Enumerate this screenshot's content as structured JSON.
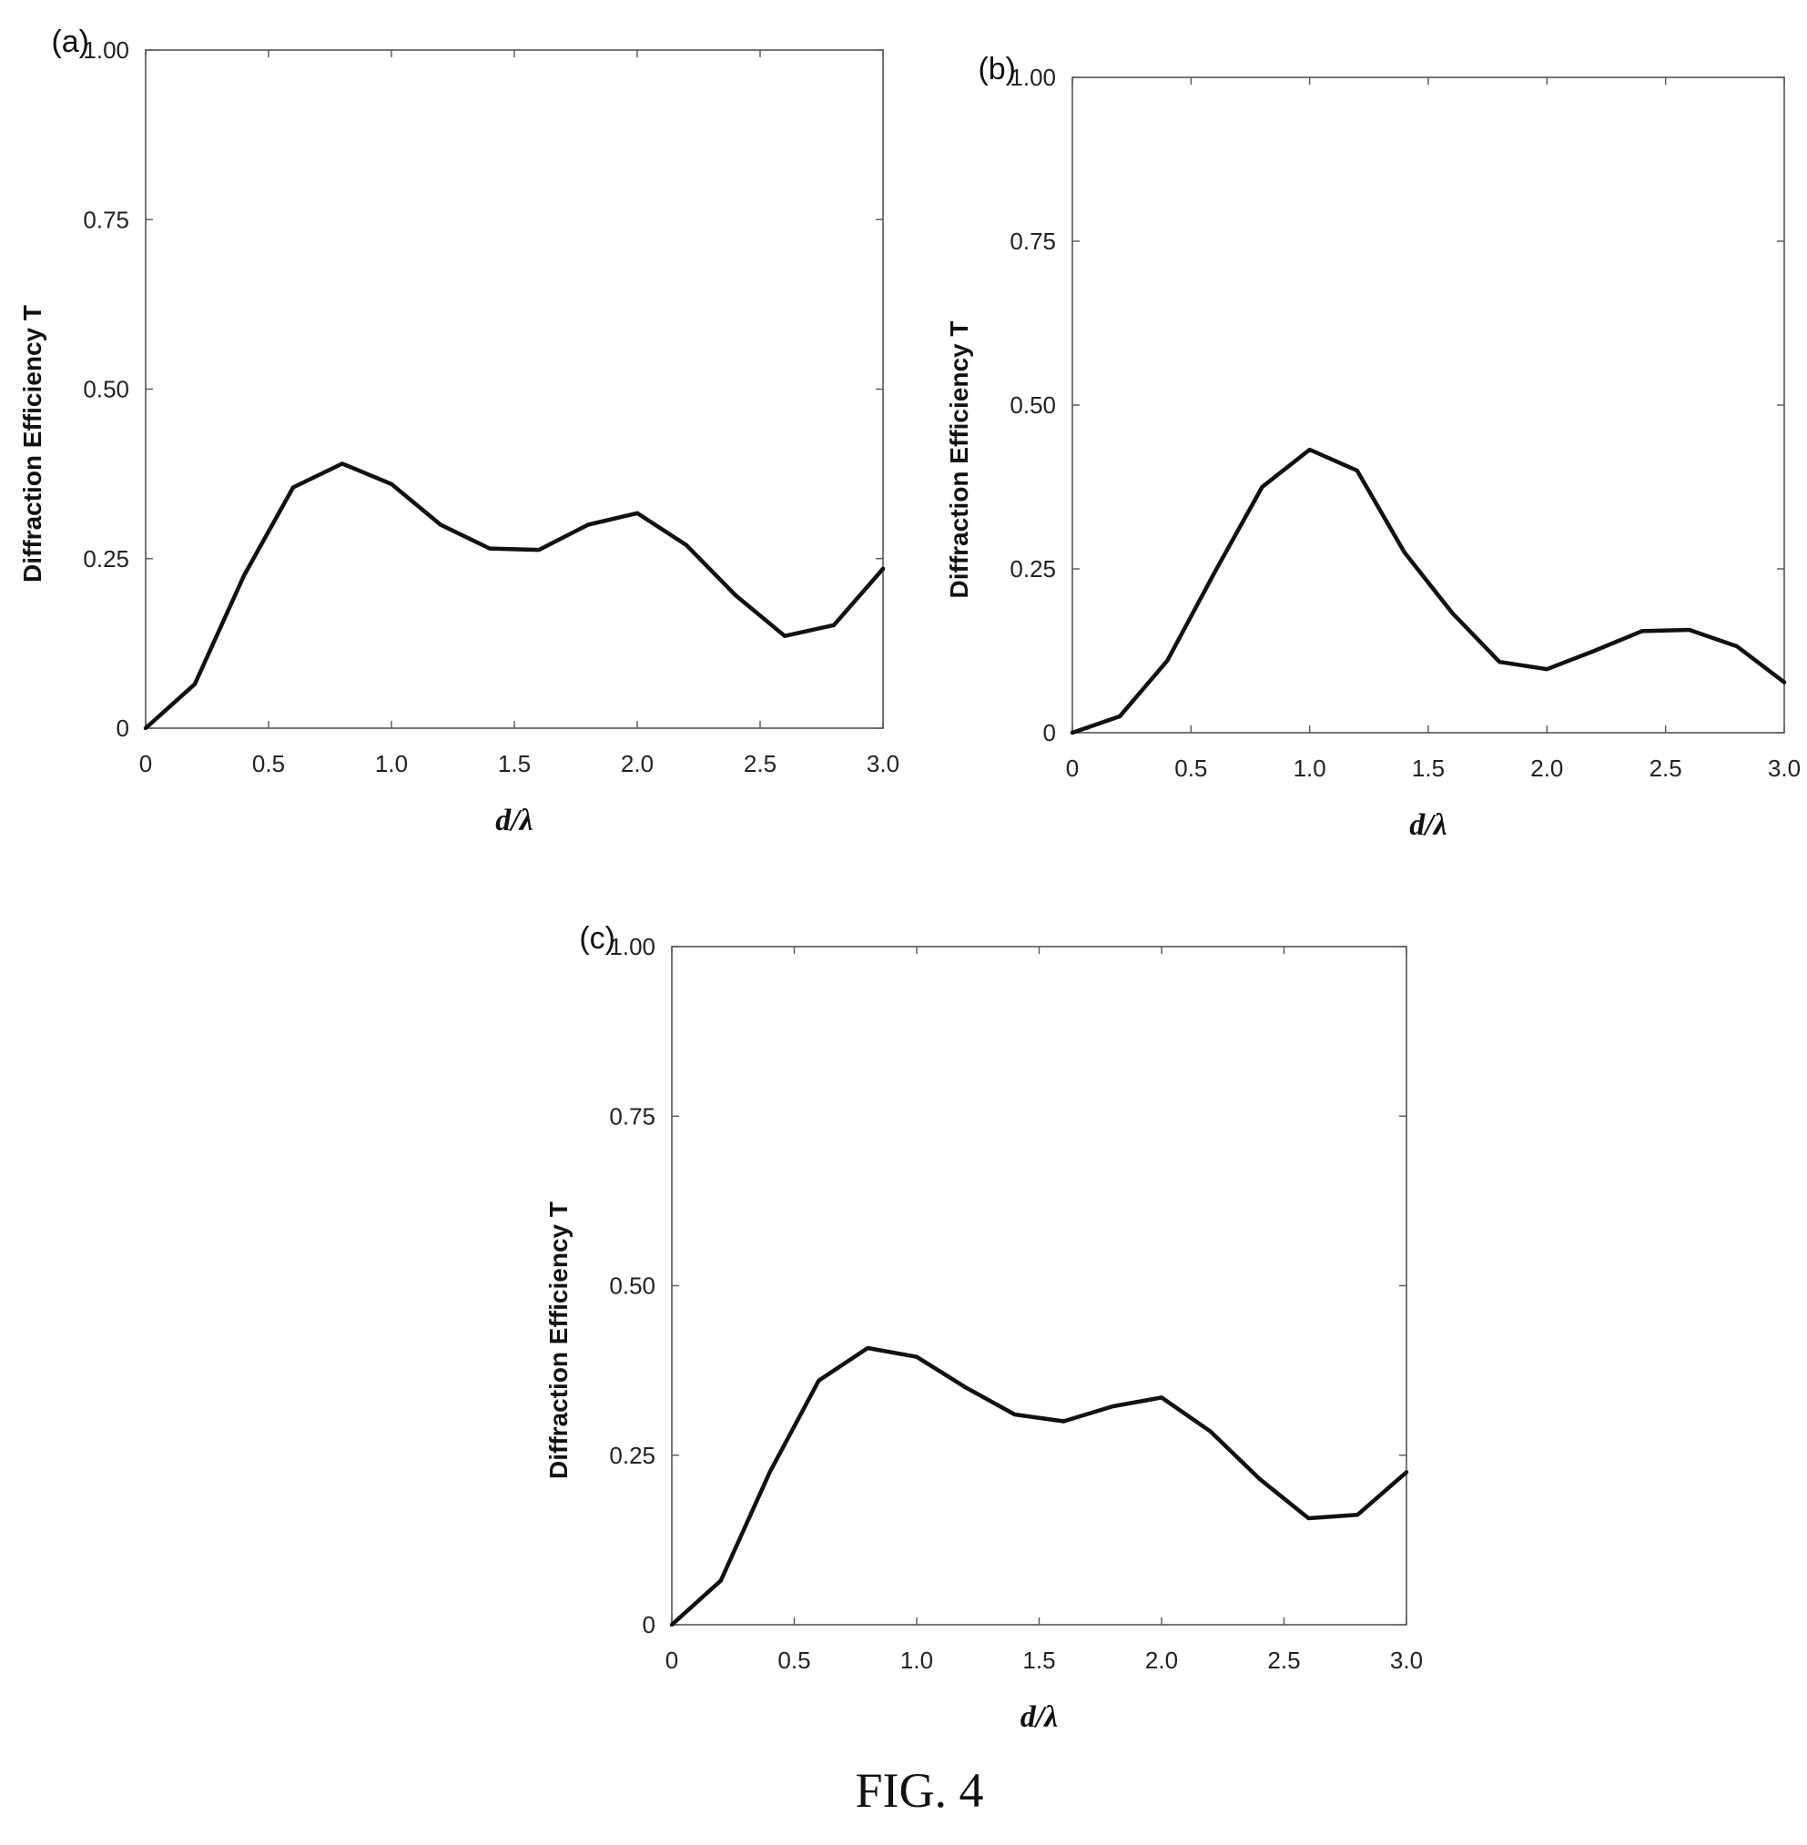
{
  "figure_caption": "FIG. 4",
  "chart_data": [
    {
      "panel_label": "(a)",
      "type": "line",
      "xlabel": "d/λ",
      "ylabel": "Diffraction Efficiency T",
      "xlim": [
        0,
        3.0
      ],
      "ylim": [
        0,
        1.0
      ],
      "xticks": [
        0,
        0.5,
        1.0,
        1.5,
        2.0,
        2.5,
        3.0
      ],
      "xtick_labels": [
        "0",
        "0.5",
        "1.0",
        "1.5",
        "2.0",
        "2.5",
        "3.0"
      ],
      "yticks": [
        0,
        0.25,
        0.5,
        0.75,
        1.0
      ],
      "ytick_labels": [
        "0",
        "0.25",
        "0.50",
        "0.75",
        "1.00"
      ],
      "grid": false,
      "series": [
        {
          "x": [
            0,
            0.2,
            0.4,
            0.6,
            0.8,
            1.0,
            1.2,
            1.4,
            1.6,
            1.8,
            2.0,
            2.2,
            2.4,
            2.6,
            2.8,
            3.0
          ],
          "y": [
            0.0,
            0.065,
            0.225,
            0.355,
            0.39,
            0.36,
            0.3,
            0.265,
            0.263,
            0.3,
            0.317,
            0.27,
            0.196,
            0.136,
            0.152,
            0.235
          ]
        }
      ]
    },
    {
      "panel_label": "(b)",
      "type": "line",
      "xlabel": "d/λ",
      "ylabel": "Diffraction Efficiency T",
      "xlim": [
        0,
        3.0
      ],
      "ylim": [
        0,
        1.0
      ],
      "xticks": [
        0,
        0.5,
        1.0,
        1.5,
        2.0,
        2.5,
        3.0
      ],
      "xtick_labels": [
        "0",
        "0.5",
        "1.0",
        "1.5",
        "2.0",
        "2.5",
        "3.0"
      ],
      "yticks": [
        0,
        0.25,
        0.5,
        0.75,
        1.0
      ],
      "ytick_labels": [
        "0",
        "0.25",
        "0.50",
        "0.75",
        "1.00"
      ],
      "grid": false,
      "series": [
        {
          "x": [
            0,
            0.2,
            0.4,
            0.6,
            0.8,
            1.0,
            1.2,
            1.4,
            1.6,
            1.8,
            2.0,
            2.2,
            2.4,
            2.6,
            2.8,
            3.0
          ],
          "y": [
            0.0,
            0.025,
            0.11,
            0.245,
            0.375,
            0.432,
            0.4,
            0.275,
            0.183,
            0.108,
            0.097,
            0.125,
            0.155,
            0.157,
            0.132,
            0.077
          ]
        }
      ]
    },
    {
      "panel_label": "(c)",
      "type": "line",
      "xlabel": "d/λ",
      "ylabel": "Diffraction Efficiency T",
      "xlim": [
        0,
        3.0
      ],
      "ylim": [
        0,
        1.0
      ],
      "xticks": [
        0,
        0.5,
        1.0,
        1.5,
        2.0,
        2.5,
        3.0
      ],
      "xtick_labels": [
        "0",
        "0.5",
        "1.0",
        "1.5",
        "2.0",
        "2.5",
        "3.0"
      ],
      "yticks": [
        0,
        0.25,
        0.5,
        0.75,
        1.0
      ],
      "ytick_labels": [
        "0",
        "0.25",
        "0.50",
        "0.75",
        "1.00"
      ],
      "grid": false,
      "series": [
        {
          "x": [
            0,
            0.2,
            0.4,
            0.6,
            0.8,
            1.0,
            1.2,
            1.4,
            1.6,
            1.8,
            2.0,
            2.2,
            2.4,
            2.6,
            2.8,
            3.0
          ],
          "y": [
            0.0,
            0.065,
            0.225,
            0.36,
            0.408,
            0.395,
            0.35,
            0.31,
            0.3,
            0.322,
            0.335,
            0.285,
            0.215,
            0.157,
            0.162,
            0.225
          ]
        }
      ]
    }
  ]
}
